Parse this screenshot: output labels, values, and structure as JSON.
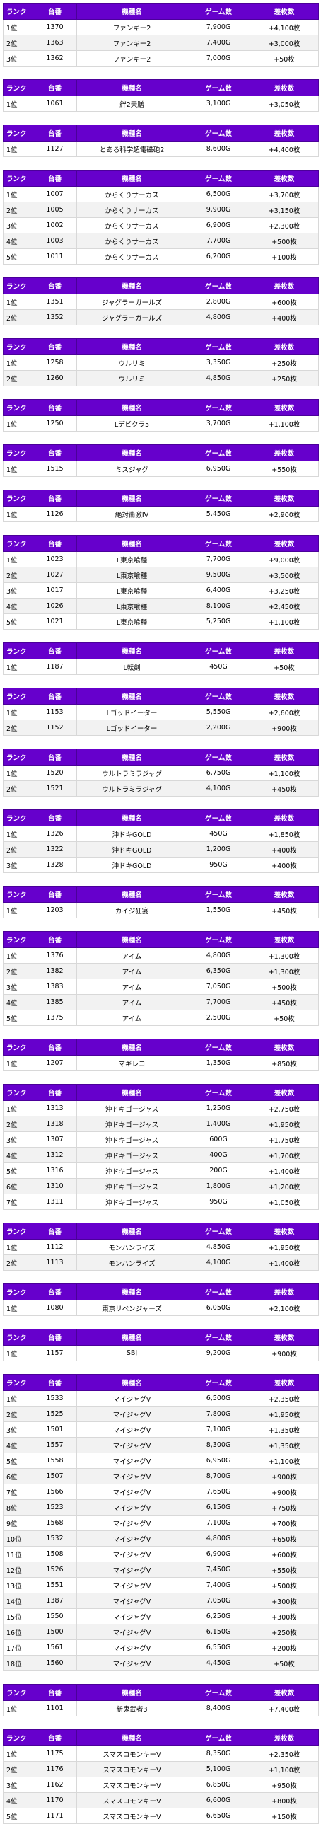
{
  "columns": [
    "ランク",
    "台番",
    "機種名",
    "ゲーム数",
    "差枚数"
  ],
  "tables": [
    {
      "rows": [
        [
          "1位",
          "1370",
          "ファンキー2",
          "7,900G",
          "+4,100枚"
        ],
        [
          "2位",
          "1363",
          "ファンキー2",
          "7,400G",
          "+3,000枚"
        ],
        [
          "3位",
          "1362",
          "ファンキー2",
          "7,000G",
          "+50枚"
        ]
      ]
    },
    {
      "rows": [
        [
          "1位",
          "1061",
          "絆2天膳",
          "3,100G",
          "+3,050枚"
        ]
      ]
    },
    {
      "rows": [
        [
          "1位",
          "1127",
          "とある科学超電磁砲2",
          "8,600G",
          "+4,400枚"
        ]
      ]
    },
    {
      "rows": [
        [
          "1位",
          "1007",
          "からくりサーカス",
          "6,500G",
          "+3,700枚"
        ],
        [
          "2位",
          "1005",
          "からくりサーカス",
          "9,900G",
          "+3,150枚"
        ],
        [
          "3位",
          "1002",
          "からくりサーカス",
          "6,900G",
          "+2,300枚"
        ],
        [
          "4位",
          "1003",
          "からくりサーカス",
          "7,700G",
          "+500枚"
        ],
        [
          "5位",
          "1011",
          "からくりサーカス",
          "6,200G",
          "+100枚"
        ]
      ]
    },
    {
      "rows": [
        [
          "1位",
          "1351",
          "ジャグラーガールズ",
          "2,800G",
          "+600枚"
        ],
        [
          "2位",
          "1352",
          "ジャグラーガールズ",
          "4,800G",
          "+400枚"
        ]
      ]
    },
    {
      "rows": [
        [
          "1位",
          "1258",
          "ウルリミ",
          "3,350G",
          "+250枚"
        ],
        [
          "2位",
          "1260",
          "ウルリミ",
          "4,850G",
          "+250枚"
        ]
      ]
    },
    {
      "rows": [
        [
          "1位",
          "1250",
          "Lデビクラ5",
          "3,700G",
          "+1,100枚"
        ]
      ]
    },
    {
      "rows": [
        [
          "1位",
          "1515",
          "ミスジャグ",
          "6,950G",
          "+550枚"
        ]
      ]
    },
    {
      "rows": [
        [
          "1位",
          "1126",
          "絶対衝激IV",
          "5,450G",
          "+2,900枚"
        ]
      ]
    },
    {
      "rows": [
        [
          "1位",
          "1023",
          "L東京喰種",
          "7,700G",
          "+9,000枚"
        ],
        [
          "2位",
          "1027",
          "L東京喰種",
          "9,500G",
          "+3,500枚"
        ],
        [
          "3位",
          "1017",
          "L東京喰種",
          "6,400G",
          "+3,250枚"
        ],
        [
          "4位",
          "1026",
          "L東京喰種",
          "8,100G",
          "+2,450枚"
        ],
        [
          "5位",
          "1021",
          "L東京喰種",
          "5,250G",
          "+1,100枚"
        ]
      ]
    },
    {
      "rows": [
        [
          "1位",
          "1187",
          "L転剣",
          "450G",
          "+50枚"
        ]
      ]
    },
    {
      "rows": [
        [
          "1位",
          "1153",
          "Lゴッドイーター",
          "5,550G",
          "+2,600枚"
        ],
        [
          "2位",
          "1152",
          "Lゴッドイーター",
          "2,200G",
          "+900枚"
        ]
      ]
    },
    {
      "rows": [
        [
          "1位",
          "1520",
          "ウルトラミラジャグ",
          "6,750G",
          "+1,100枚"
        ],
        [
          "2位",
          "1521",
          "ウルトラミラジャグ",
          "4,100G",
          "+450枚"
        ]
      ]
    },
    {
      "rows": [
        [
          "1位",
          "1326",
          "沖ドキGOLD",
          "450G",
          "+1,850枚"
        ],
        [
          "2位",
          "1322",
          "沖ドキGOLD",
          "1,200G",
          "+400枚"
        ],
        [
          "3位",
          "1328",
          "沖ドキGOLD",
          "950G",
          "+400枚"
        ]
      ]
    },
    {
      "rows": [
        [
          "1位",
          "1203",
          "カイジ狂宴",
          "1,550G",
          "+450枚"
        ]
      ]
    },
    {
      "rows": [
        [
          "1位",
          "1376",
          "アイム",
          "4,800G",
          "+1,300枚"
        ],
        [
          "2位",
          "1382",
          "アイム",
          "6,350G",
          "+1,300枚"
        ],
        [
          "3位",
          "1383",
          "アイム",
          "7,050G",
          "+500枚"
        ],
        [
          "4位",
          "1385",
          "アイム",
          "7,700G",
          "+450枚"
        ],
        [
          "5位",
          "1375",
          "アイム",
          "2,500G",
          "+50枚"
        ]
      ]
    },
    {
      "rows": [
        [
          "1位",
          "1207",
          "マギレコ",
          "1,350G",
          "+850枚"
        ]
      ]
    },
    {
      "rows": [
        [
          "1位",
          "1313",
          "沖ドキゴージャス",
          "1,250G",
          "+2,750枚"
        ],
        [
          "2位",
          "1318",
          "沖ドキゴージャス",
          "1,400G",
          "+1,950枚"
        ],
        [
          "3位",
          "1307",
          "沖ドキゴージャス",
          "600G",
          "+1,750枚"
        ],
        [
          "4位",
          "1312",
          "沖ドキゴージャス",
          "400G",
          "+1,700枚"
        ],
        [
          "5位",
          "1316",
          "沖ドキゴージャス",
          "200G",
          "+1,400枚"
        ],
        [
          "6位",
          "1310",
          "沖ドキゴージャス",
          "1,800G",
          "+1,200枚"
        ],
        [
          "7位",
          "1311",
          "沖ドキゴージャス",
          "950G",
          "+1,050枚"
        ]
      ]
    },
    {
      "rows": [
        [
          "1位",
          "1112",
          "モンハンライズ",
          "4,850G",
          "+1,950枚"
        ],
        [
          "2位",
          "1113",
          "モンハンライズ",
          "4,100G",
          "+1,400枚"
        ]
      ]
    },
    {
      "rows": [
        [
          "1位",
          "1080",
          "東京リベンジャーズ",
          "6,050G",
          "+2,100枚"
        ]
      ]
    },
    {
      "rows": [
        [
          "1位",
          "1157",
          "SBJ",
          "9,200G",
          "+900枚"
        ]
      ]
    },
    {
      "rows": [
        [
          "1位",
          "1533",
          "マイジャグV",
          "6,500G",
          "+2,350枚"
        ],
        [
          "2位",
          "1525",
          "マイジャグV",
          "7,800G",
          "+1,950枚"
        ],
        [
          "3位",
          "1501",
          "マイジャグV",
          "7,100G",
          "+1,350枚"
        ],
        [
          "4位",
          "1557",
          "マイジャグV",
          "8,300G",
          "+1,350枚"
        ],
        [
          "5位",
          "1558",
          "マイジャグV",
          "6,950G",
          "+1,100枚"
        ],
        [
          "6位",
          "1507",
          "マイジャグV",
          "8,700G",
          "+900枚"
        ],
        [
          "7位",
          "1566",
          "マイジャグV",
          "7,650G",
          "+900枚"
        ],
        [
          "8位",
          "1523",
          "マイジャグV",
          "6,150G",
          "+750枚"
        ],
        [
          "9位",
          "1568",
          "マイジャグV",
          "7,100G",
          "+700枚"
        ],
        [
          "10位",
          "1532",
          "マイジャグV",
          "4,800G",
          "+650枚"
        ],
        [
          "11位",
          "1508",
          "マイジャグV",
          "6,900G",
          "+600枚"
        ],
        [
          "12位",
          "1526",
          "マイジャグV",
          "7,450G",
          "+550枚"
        ],
        [
          "13位",
          "1551",
          "マイジャグV",
          "7,400G",
          "+500枚"
        ],
        [
          "14位",
          "1387",
          "マイジャグV",
          "7,050G",
          "+300枚"
        ],
        [
          "15位",
          "1550",
          "マイジャグV",
          "6,250G",
          "+300枚"
        ],
        [
          "16位",
          "1500",
          "マイジャグV",
          "6,150G",
          "+250枚"
        ],
        [
          "17位",
          "1561",
          "マイジャグV",
          "6,550G",
          "+200枚"
        ],
        [
          "18位",
          "1560",
          "マイジャグV",
          "4,450G",
          "+50枚"
        ]
      ]
    },
    {
      "rows": [
        [
          "1位",
          "1101",
          "新鬼武者3",
          "8,400G",
          "+7,400枚"
        ]
      ]
    },
    {
      "rows": [
        [
          "1位",
          "1175",
          "スマスロモンキーV",
          "8,350G",
          "+2,350枚"
        ],
        [
          "2位",
          "1176",
          "スマスロモンキーV",
          "5,100G",
          "+1,100枚"
        ],
        [
          "3位",
          "1162",
          "スマスロモンキーV",
          "6,850G",
          "+950枚"
        ],
        [
          "4位",
          "1170",
          "スマスロモンキーV",
          "6,600G",
          "+800枚"
        ],
        [
          "5位",
          "1171",
          "スマスロモンキーV",
          "6,650G",
          "+150枚"
        ]
      ]
    }
  ]
}
